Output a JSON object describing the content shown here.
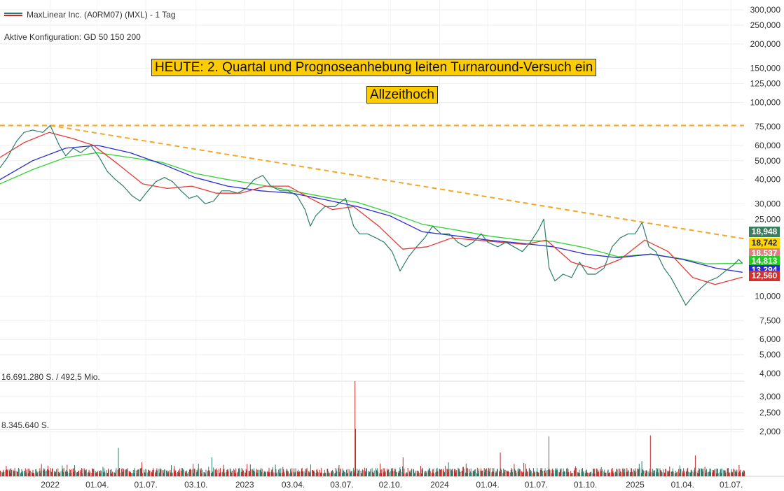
{
  "header": {
    "title": "MaxLinear Inc. (A0RM07) (MXL) - 1 Tag",
    "config": "Aktive Konfiguration: GD 50 150 200"
  },
  "annotations": [
    "HEUTE: 2. Quartal und Prognoseanhebung leiten Turnaround-Versuch ein",
    "Allzeithoch"
  ],
  "volume": {
    "label_top": "16.691.280 S. / 492,5 Mio.",
    "label_mid": "8.345.640 S."
  },
  "colors": {
    "price": "#2e7d6b",
    "gd50": "#e53935",
    "gd150": "#2a2ad6",
    "gd200": "#35d335",
    "trend": "#f5a623",
    "annotation_bg": "#ffcc00"
  },
  "badges": [
    {
      "value": "18,948",
      "color": "#3a7d5f"
    },
    {
      "value": "18,742",
      "color": "#ffd600",
      "text_color": "#222"
    },
    {
      "value": "18,537",
      "color": "#e08080"
    },
    {
      "value": "14,813",
      "color": "#22cc22"
    },
    {
      "value": "13,294",
      "color": "#2a2ad6"
    },
    {
      "value": "12,560",
      "color": "#d32f2f"
    }
  ],
  "chart_data": {
    "type": "line",
    "y_scale": "log",
    "price_ylim": [
      3.8,
      320
    ],
    "y_ticks": [
      {
        "v": 300,
        "label": "300,000"
      },
      {
        "v": 250,
        "label": "250,000"
      },
      {
        "v": 200,
        "label": "200,000"
      },
      {
        "v": 150,
        "label": "150,000"
      },
      {
        "v": 125,
        "label": "125,000"
      },
      {
        "v": 100,
        "label": "100,000"
      },
      {
        "v": 75,
        "label": "75,000"
      },
      {
        "v": 60,
        "label": "60,000"
      },
      {
        "v": 50,
        "label": "50,000"
      },
      {
        "v": 40,
        "label": "40,000"
      },
      {
        "v": 30,
        "label": "30,000"
      },
      {
        "v": 25,
        "label": "25,000"
      },
      {
        "v": 10,
        "label": "10,000"
      },
      {
        "v": 7.5,
        "label": "7,500"
      },
      {
        "v": 6,
        "label": "6,000"
      },
      {
        "v": 5,
        "label": "5,000"
      },
      {
        "v": 4,
        "label": "4,000"
      }
    ],
    "x_ticks": [
      "2022",
      "01.04.",
      "01.07.",
      "03.10.",
      "2023",
      "03.04.",
      "03.07.",
      "02.10.",
      "2024",
      "01.04.",
      "01.07.",
      "01.10.",
      "2025",
      "01.04.",
      "01.07."
    ],
    "x_tick_dates": [
      "2022-01-03",
      "2022-04-01",
      "2022-07-01",
      "2022-10-03",
      "2023-01-02",
      "2023-04-03",
      "2023-07-03",
      "2023-10-02",
      "2024-01-02",
      "2024-04-01",
      "2024-07-01",
      "2024-10-01",
      "2025-01-02",
      "2025-04-01",
      "2025-07-01"
    ],
    "x_range": [
      "2021-10-01",
      "2025-07-25"
    ],
    "series": [
      {
        "key": "price",
        "points": [
          [
            "2021-10-01",
            46
          ],
          [
            "2021-10-15",
            52
          ],
          [
            "2021-11-01",
            63
          ],
          [
            "2021-11-15",
            70
          ],
          [
            "2021-12-01",
            72
          ],
          [
            "2021-12-20",
            70
          ],
          [
            "2022-01-03",
            76
          ],
          [
            "2022-01-20",
            60
          ],
          [
            "2022-02-01",
            53
          ],
          [
            "2022-02-15",
            58
          ],
          [
            "2022-03-01",
            55
          ],
          [
            "2022-03-20",
            60
          ],
          [
            "2022-04-05",
            52
          ],
          [
            "2022-04-20",
            44
          ],
          [
            "2022-05-05",
            40
          ],
          [
            "2022-05-20",
            37
          ],
          [
            "2022-06-05",
            33
          ],
          [
            "2022-06-20",
            31
          ],
          [
            "2022-07-05",
            35
          ],
          [
            "2022-07-20",
            39
          ],
          [
            "2022-08-05",
            41
          ],
          [
            "2022-08-20",
            39
          ],
          [
            "2022-09-05",
            35
          ],
          [
            "2022-09-20",
            32
          ],
          [
            "2022-10-05",
            33
          ],
          [
            "2022-10-20",
            30
          ],
          [
            "2022-11-05",
            31
          ],
          [
            "2022-11-20",
            35
          ],
          [
            "2022-12-05",
            35
          ],
          [
            "2022-12-20",
            34
          ],
          [
            "2023-01-05",
            36
          ],
          [
            "2023-01-20",
            40
          ],
          [
            "2023-02-05",
            42
          ],
          [
            "2023-02-20",
            37
          ],
          [
            "2023-03-10",
            35
          ],
          [
            "2023-03-25",
            35
          ],
          [
            "2023-04-10",
            33
          ],
          [
            "2023-04-25",
            28
          ],
          [
            "2023-05-05",
            23
          ],
          [
            "2023-05-15",
            26
          ],
          [
            "2023-06-01",
            29
          ],
          [
            "2023-06-20",
            29
          ],
          [
            "2023-07-10",
            32
          ],
          [
            "2023-07-25",
            23
          ],
          [
            "2023-08-05",
            21
          ],
          [
            "2023-08-20",
            21
          ],
          [
            "2023-09-05",
            20
          ],
          [
            "2023-09-20",
            19
          ],
          [
            "2023-10-05",
            17
          ],
          [
            "2023-10-20",
            13.5
          ],
          [
            "2023-11-05",
            16
          ],
          [
            "2023-11-20",
            18
          ],
          [
            "2023-12-05",
            20
          ],
          [
            "2023-12-20",
            23
          ],
          [
            "2024-01-05",
            21
          ],
          [
            "2024-01-20",
            21
          ],
          [
            "2024-02-05",
            19
          ],
          [
            "2024-02-20",
            18
          ],
          [
            "2024-03-05",
            19
          ],
          [
            "2024-03-20",
            21
          ],
          [
            "2024-04-01",
            19
          ],
          [
            "2024-04-20",
            18
          ],
          [
            "2024-05-05",
            19
          ],
          [
            "2024-05-20",
            18
          ],
          [
            "2024-06-05",
            17
          ],
          [
            "2024-06-20",
            19
          ],
          [
            "2024-07-05",
            22
          ],
          [
            "2024-07-15",
            25
          ],
          [
            "2024-07-25",
            14
          ],
          [
            "2024-08-05",
            12
          ],
          [
            "2024-08-20",
            13
          ],
          [
            "2024-09-05",
            12.5
          ],
          [
            "2024-09-20",
            15
          ],
          [
            "2024-10-05",
            13
          ],
          [
            "2024-10-20",
            13
          ],
          [
            "2024-11-05",
            14
          ],
          [
            "2024-11-20",
            18
          ],
          [
            "2024-12-05",
            20
          ],
          [
            "2024-12-20",
            21
          ],
          [
            "2025-01-02",
            21
          ],
          [
            "2025-01-15",
            24
          ],
          [
            "2025-01-28",
            18
          ],
          [
            "2025-02-10",
            17
          ],
          [
            "2025-02-25",
            14
          ],
          [
            "2025-03-10",
            12.5
          ],
          [
            "2025-03-25",
            10.5
          ],
          [
            "2025-04-07",
            9
          ],
          [
            "2025-04-20",
            10
          ],
          [
            "2025-05-05",
            11
          ],
          [
            "2025-05-20",
            12
          ],
          [
            "2025-06-05",
            12.5
          ],
          [
            "2025-06-20",
            13.5
          ],
          [
            "2025-07-05",
            14.5
          ],
          [
            "2025-07-15",
            15.5
          ],
          [
            "2025-07-22",
            14.8
          ]
        ]
      },
      {
        "key": "gd50",
        "points": [
          [
            "2021-10-01",
            52
          ],
          [
            "2021-11-15",
            62
          ],
          [
            "2022-01-01",
            70
          ],
          [
            "2022-02-15",
            65
          ],
          [
            "2022-03-25",
            60
          ],
          [
            "2022-05-10",
            48
          ],
          [
            "2022-06-25",
            38
          ],
          [
            "2022-08-10",
            36
          ],
          [
            "2022-09-25",
            37
          ],
          [
            "2022-11-10",
            34
          ],
          [
            "2022-12-25",
            34
          ],
          [
            "2023-02-10",
            37
          ],
          [
            "2023-03-25",
            37
          ],
          [
            "2023-05-05",
            32
          ],
          [
            "2023-06-15",
            28
          ],
          [
            "2023-07-25",
            29
          ],
          [
            "2023-09-10",
            23
          ],
          [
            "2023-10-25",
            17.5
          ],
          [
            "2023-12-10",
            18
          ],
          [
            "2024-01-25",
            20
          ],
          [
            "2024-03-10",
            19.5
          ],
          [
            "2024-04-25",
            19
          ],
          [
            "2024-06-10",
            18.5
          ],
          [
            "2024-07-20",
            19.5
          ],
          [
            "2024-09-05",
            15
          ],
          [
            "2024-10-20",
            13.8
          ],
          [
            "2024-12-05",
            15.5
          ],
          [
            "2025-01-20",
            19.5
          ],
          [
            "2025-03-05",
            17
          ],
          [
            "2025-04-20",
            12.5
          ],
          [
            "2025-06-01",
            11.5
          ],
          [
            "2025-07-22",
            12.56
          ]
        ]
      },
      {
        "key": "gd150",
        "points": [
          [
            "2021-10-01",
            40
          ],
          [
            "2021-12-01",
            50
          ],
          [
            "2022-02-01",
            58
          ],
          [
            "2022-04-01",
            60
          ],
          [
            "2022-06-01",
            55
          ],
          [
            "2022-08-01",
            48
          ],
          [
            "2022-10-01",
            41
          ],
          [
            "2022-12-01",
            37
          ],
          [
            "2023-02-01",
            35
          ],
          [
            "2023-04-01",
            34
          ],
          [
            "2023-06-01",
            31.5
          ],
          [
            "2023-08-01",
            29
          ],
          [
            "2023-10-01",
            26
          ],
          [
            "2023-12-01",
            21.5
          ],
          [
            "2024-02-01",
            20.5
          ],
          [
            "2024-04-01",
            19.5
          ],
          [
            "2024-06-01",
            18.8
          ],
          [
            "2024-08-01",
            18
          ],
          [
            "2024-10-01",
            16.5
          ],
          [
            "2024-12-01",
            15.8
          ],
          [
            "2025-02-01",
            16.5
          ],
          [
            "2025-04-01",
            15.5
          ],
          [
            "2025-06-01",
            14
          ],
          [
            "2025-07-22",
            13.294
          ]
        ]
      },
      {
        "key": "gd200",
        "points": [
          [
            "2021-10-01",
            38
          ],
          [
            "2021-12-01",
            45
          ],
          [
            "2022-02-01",
            52
          ],
          [
            "2022-04-01",
            55
          ],
          [
            "2022-06-01",
            52
          ],
          [
            "2022-08-01",
            49
          ],
          [
            "2022-10-01",
            43
          ],
          [
            "2022-12-01",
            40
          ],
          [
            "2023-02-01",
            37.5
          ],
          [
            "2023-04-01",
            35
          ],
          [
            "2023-06-01",
            32.5
          ],
          [
            "2023-08-01",
            30.5
          ],
          [
            "2023-10-01",
            27
          ],
          [
            "2023-12-01",
            23.5
          ],
          [
            "2024-02-01",
            22
          ],
          [
            "2024-04-01",
            20.5
          ],
          [
            "2024-06-01",
            19.5
          ],
          [
            "2024-08-01",
            19.2
          ],
          [
            "2024-10-01",
            17.8
          ],
          [
            "2024-12-01",
            16
          ],
          [
            "2025-02-01",
            16.5
          ],
          [
            "2025-04-01",
            15.6
          ],
          [
            "2025-05-15",
            14.7
          ],
          [
            "2025-07-22",
            14.813
          ]
        ]
      }
    ],
    "resistance": {
      "value": 76
    },
    "trend_line": {
      "from": [
        "2022-01-03",
        76
      ],
      "to": [
        "2025-07-25",
        19.8
      ]
    },
    "volume_ylim": [
      0,
      17000000
    ]
  }
}
